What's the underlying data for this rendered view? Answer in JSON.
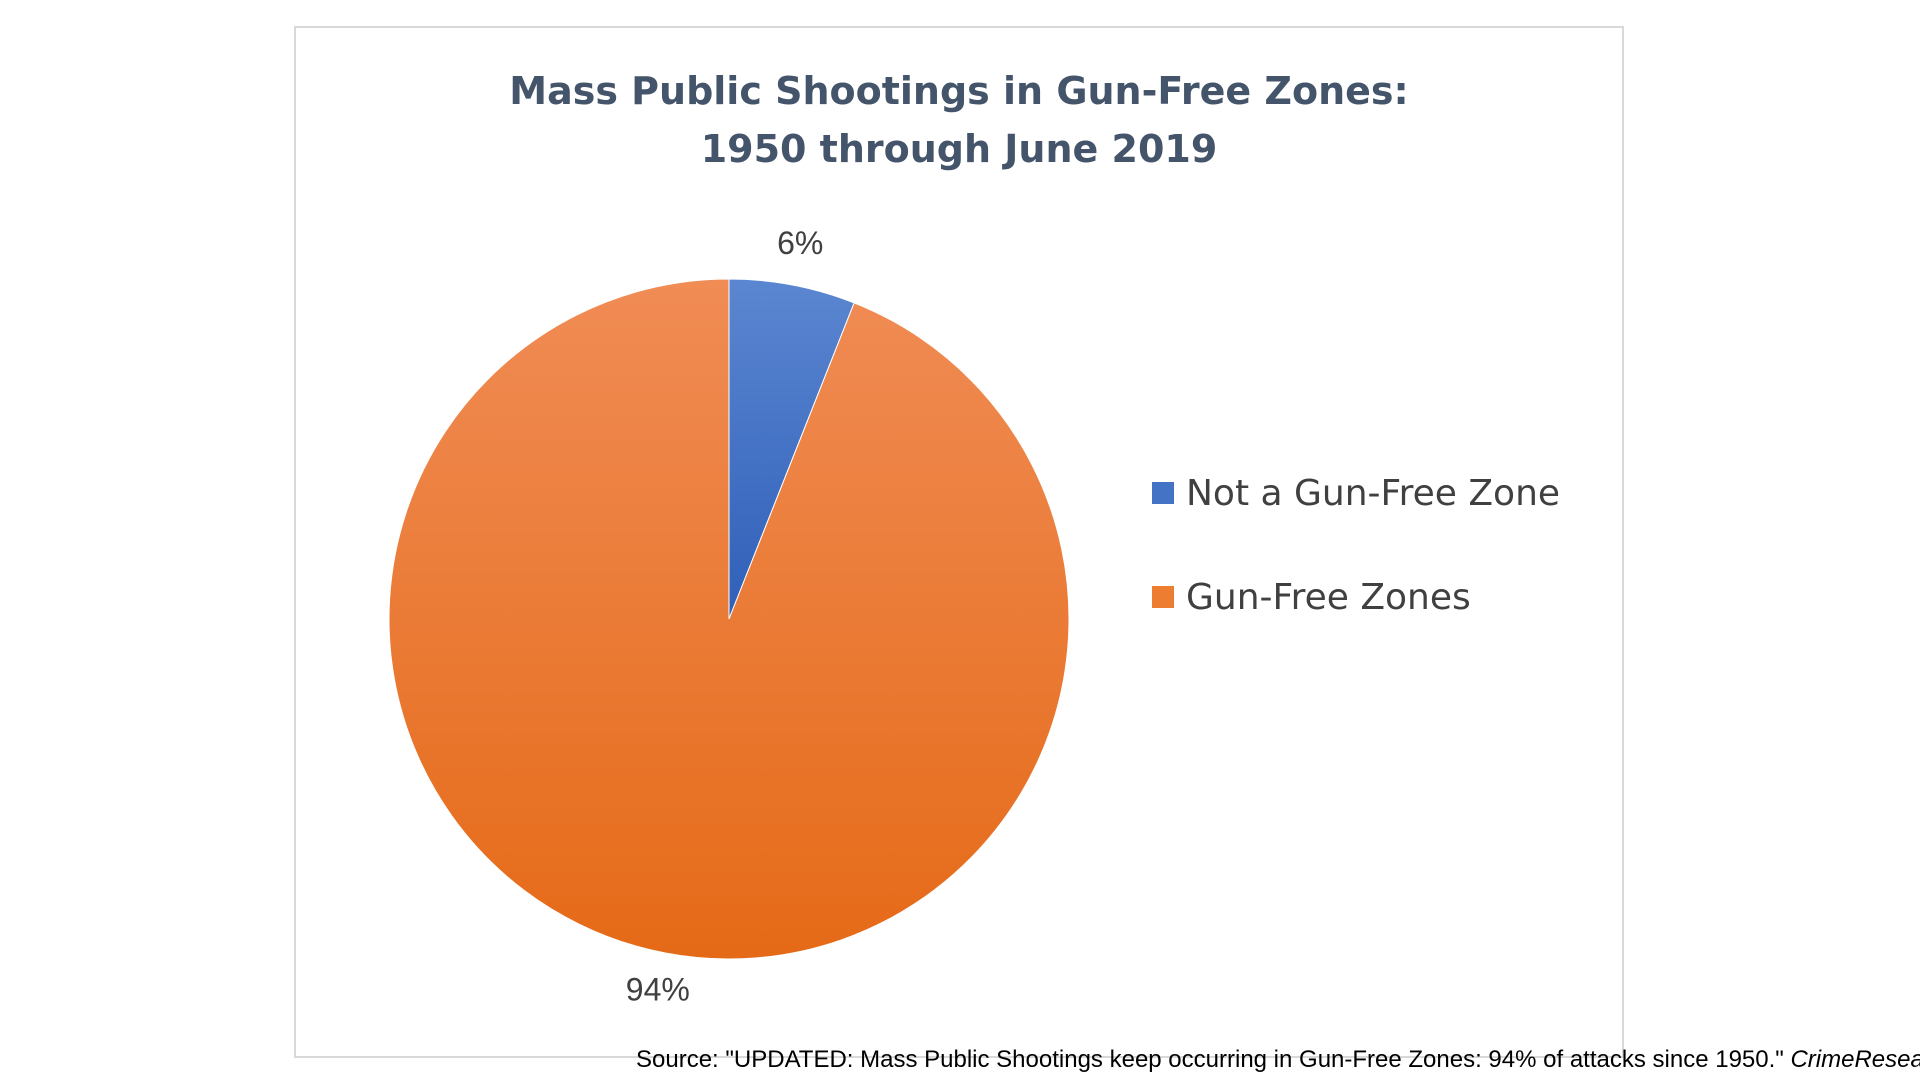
{
  "colors": {
    "not_gun_free": "#4472c4",
    "gun_free": "#ed7d31",
    "title": "#44546a",
    "frame": "#d9d9d9"
  },
  "chart_data": {
    "type": "pie",
    "title_lines": [
      "Mass Public Shootings in Gun-Free Zones:",
      "1950 through June 2019"
    ],
    "categories": [
      "Not a Gun-Free Zone",
      "Gun-Free Zones"
    ],
    "values": [
      6,
      94
    ],
    "data_labels": [
      "6%",
      "94%"
    ],
    "legend_position": "right",
    "start_angle_deg": 0,
    "direction": "clockwise"
  },
  "source": {
    "prefix": "Source: \"UPDATED: Mass Public Shootings keep occurring in Gun-Free Zones: 94% of attacks since 1950.\" ",
    "site": "CrimeResearch.org",
    "suffix": "."
  }
}
